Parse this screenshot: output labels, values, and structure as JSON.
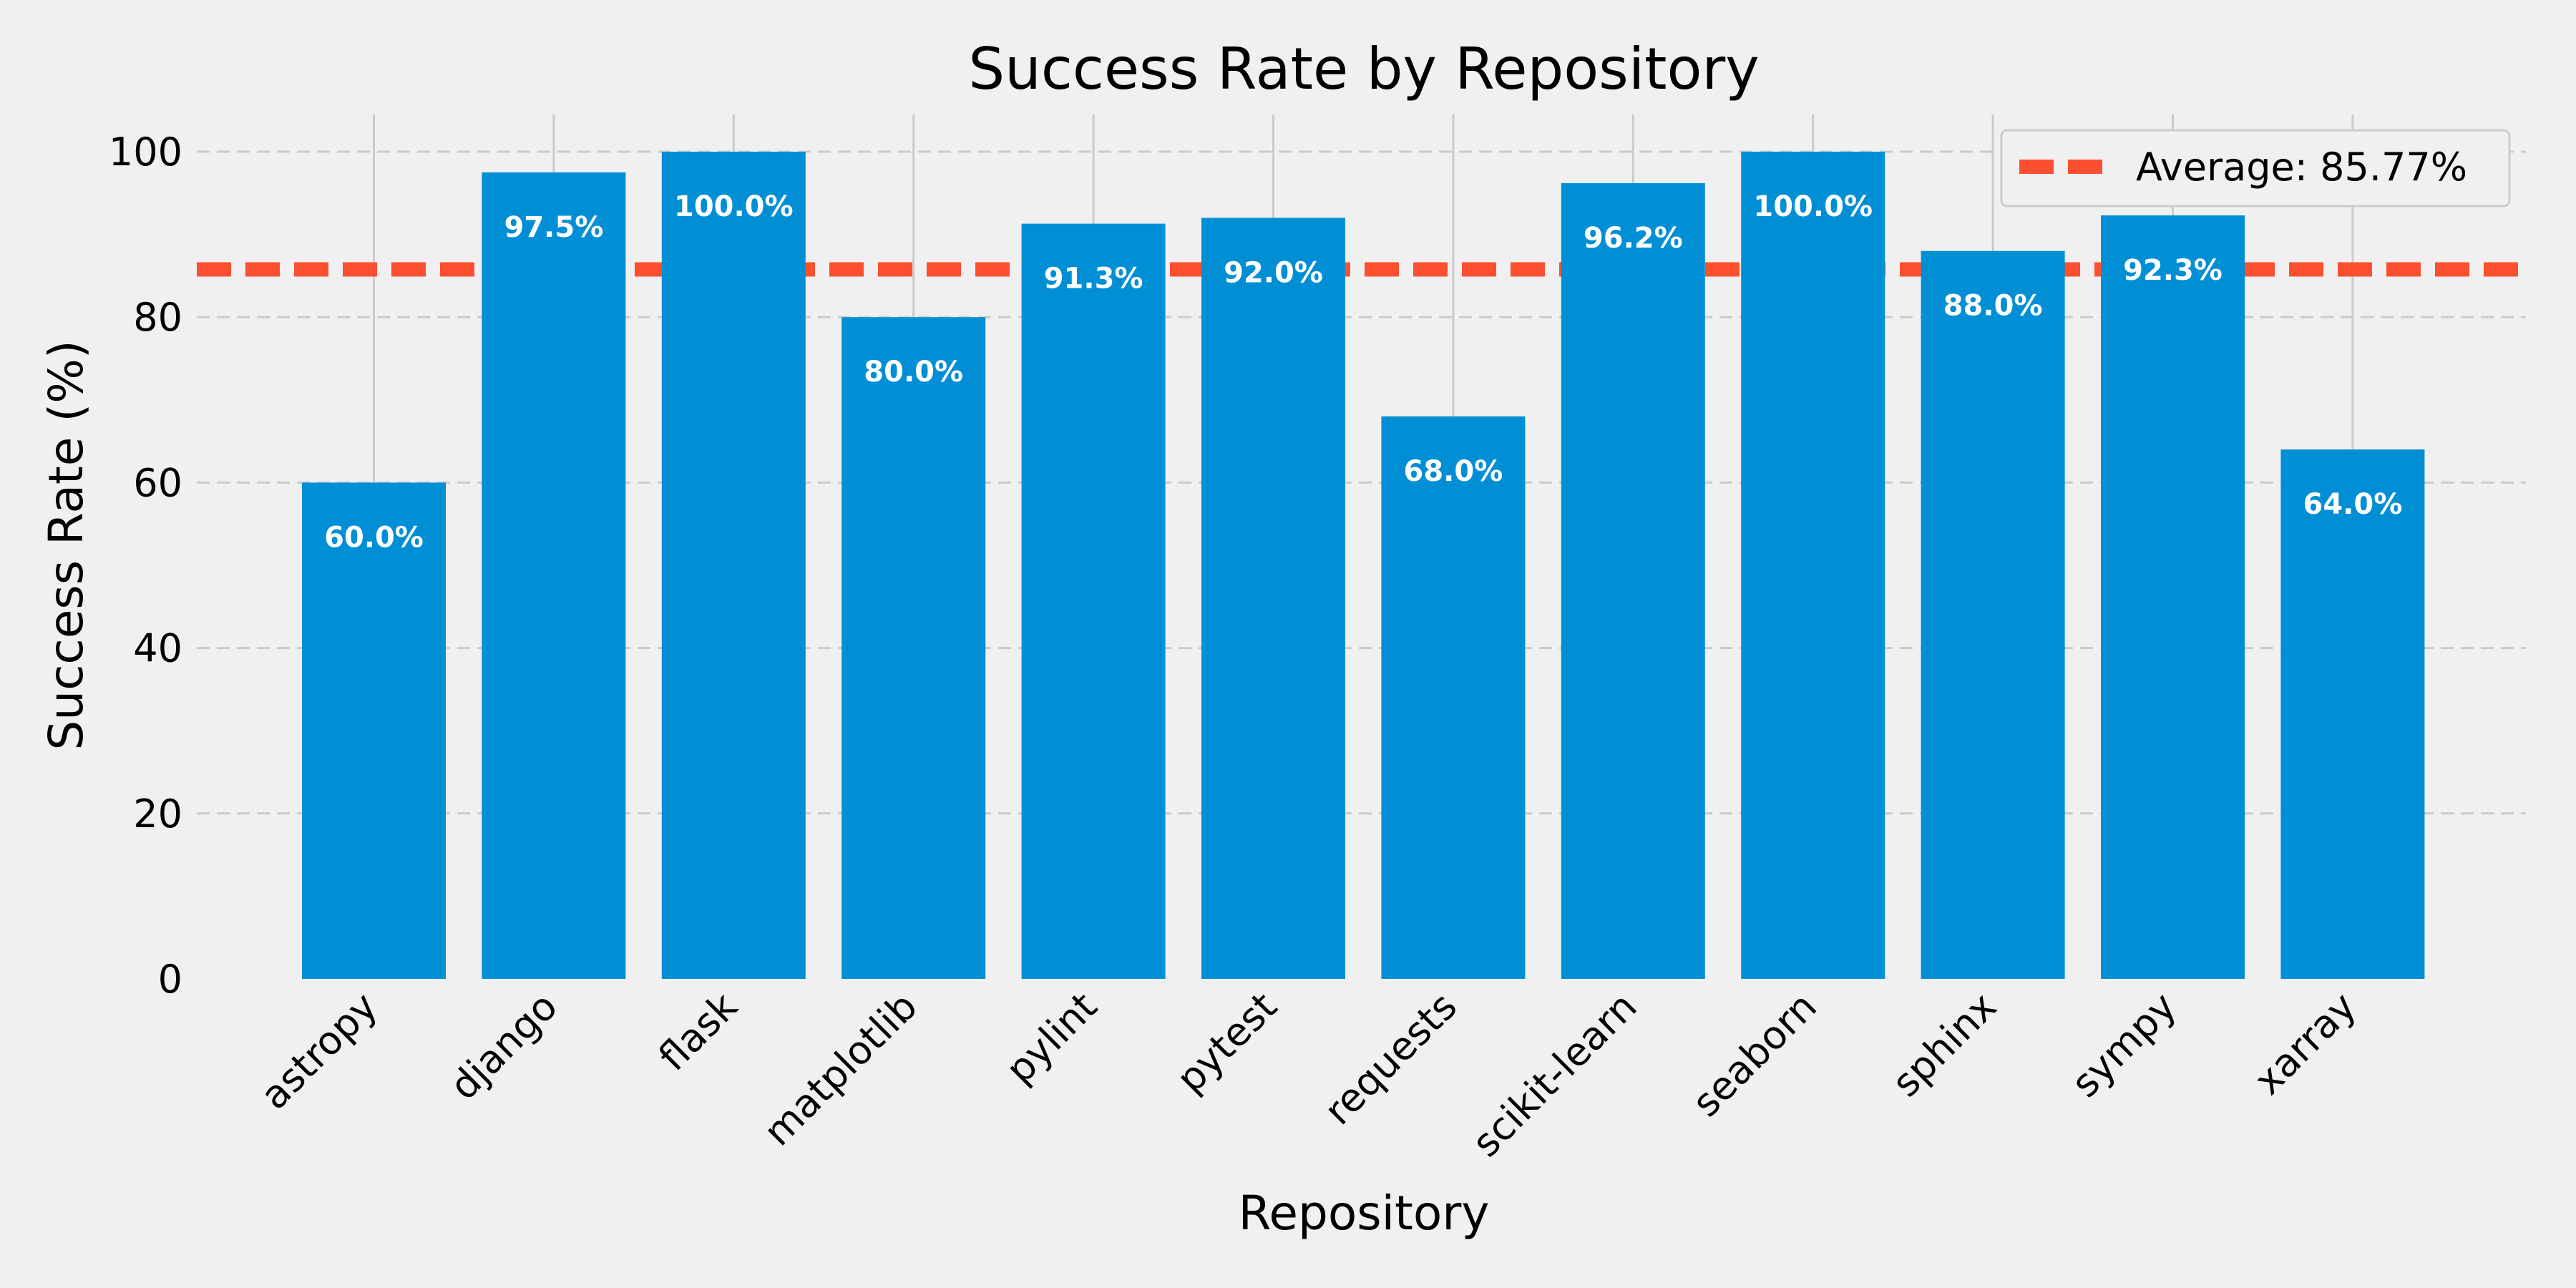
{
  "chart_data": {
    "type": "bar",
    "title": "Success Rate by Repository",
    "xlabel": "Repository",
    "ylabel": "Success Rate (%)",
    "categories": [
      "astropy",
      "django",
      "flask",
      "matplotlib",
      "pylint",
      "pytest",
      "requests",
      "scikit-learn",
      "seaborn",
      "sphinx",
      "sympy",
      "xarray"
    ],
    "values": [
      60.0,
      97.5,
      100.0,
      80.0,
      91.3,
      92.0,
      68.0,
      96.2,
      100.0,
      88.0,
      92.3,
      64.0
    ],
    "value_labels": [
      "60.0%",
      "97.5%",
      "100.0%",
      "80.0%",
      "91.3%",
      "92.0%",
      "68.0%",
      "96.2%",
      "100.0%",
      "88.0%",
      "92.3%",
      "64.0%"
    ],
    "yticks": [
      0,
      20,
      40,
      60,
      80,
      100
    ],
    "ylim": [
      0,
      104.5
    ],
    "grid": true,
    "average": {
      "value": 85.77,
      "label": "Average: 85.77%"
    },
    "legend_position": "top-right",
    "colors": {
      "bar": "#008fd5",
      "average_line": "#fc4f30",
      "background": "#f0f0f0",
      "grid": "#cbcbcb"
    }
  }
}
